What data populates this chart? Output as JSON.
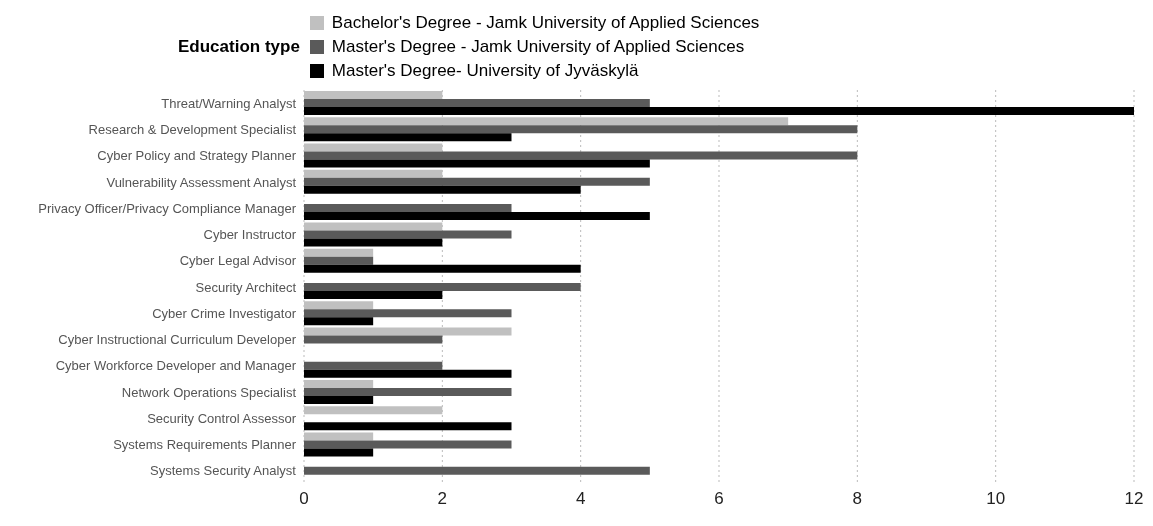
{
  "chart_data": {
    "type": "bar",
    "orientation": "horizontal",
    "legend_title": "Education type",
    "legend": "top",
    "categories": [
      "Threat/Warning Analyst",
      "Research & Development Specialist",
      "Cyber Policy and Strategy Planner",
      "Vulnerability Assessment Analyst",
      "Privacy Officer/Privacy Compliance Manager",
      "Cyber Instructor",
      "Cyber Legal Advisor",
      "Security Architect",
      "Cyber Crime Investigator",
      "Cyber Instructional Curriculum Developer",
      "Cyber Workforce Developer and Manager",
      "Network Operations Specialist",
      "Security Control Assessor",
      "Systems Requirements Planner",
      "Systems Security Analyst"
    ],
    "series": [
      {
        "name": "Bachelor's Degree - Jamk University of Applied Sciences",
        "color": "#c0c0c0",
        "values": [
          2,
          7,
          2,
          2,
          null,
          2,
          1,
          null,
          1,
          3,
          null,
          1,
          2,
          1,
          null
        ]
      },
      {
        "name": "Master's Degree - Jamk University of Applied Sciences",
        "color": "#5a5a5a",
        "values": [
          5,
          8,
          8,
          5,
          3,
          3,
          1,
          4,
          3,
          2,
          2,
          3,
          null,
          3,
          5
        ]
      },
      {
        "name": "Master's Degree- University of Jyväskylä",
        "color": "#000000",
        "values": [
          12,
          3,
          5,
          4,
          5,
          2,
          4,
          2,
          1,
          null,
          3,
          1,
          3,
          1,
          null
        ]
      }
    ],
    "xlim": [
      0,
      12
    ],
    "xticks": [
      0,
      2,
      4,
      6,
      8,
      10,
      12
    ],
    "grid": "x"
  }
}
